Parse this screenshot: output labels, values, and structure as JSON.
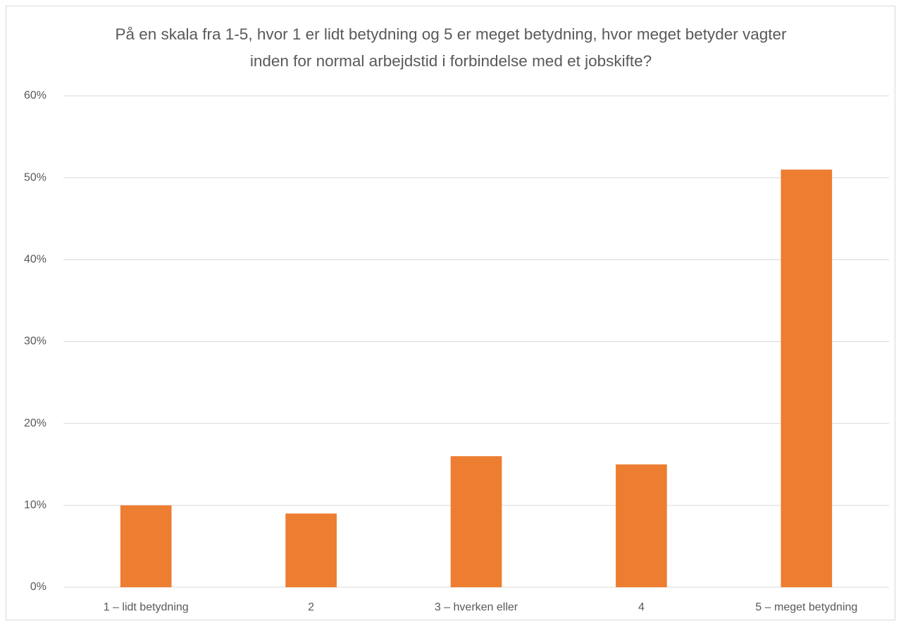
{
  "chart_data": {
    "type": "bar",
    "title": "På en skala fra 1-5, hvor 1 er lidt betydning og 5 er meget betydning, hvor meget betyder vagter inden for normal arbejdstid i forbindelse med et jobskifte?",
    "categories": [
      "1 – lidt betydning",
      "2",
      "3 – hverken eller",
      "4",
      "5 – meget betydning"
    ],
    "values": [
      10,
      9,
      16,
      15,
      51
    ],
    "color": "#ed7d31",
    "ylim": [
      0,
      60
    ],
    "yticks": [
      {
        "value": 0,
        "label": "0%"
      },
      {
        "value": 10,
        "label": "10%"
      },
      {
        "value": 20,
        "label": "20%"
      },
      {
        "value": 30,
        "label": "30%"
      },
      {
        "value": 40,
        "label": "40%"
      },
      {
        "value": 50,
        "label": "50%"
      },
      {
        "value": 60,
        "label": "60%"
      }
    ],
    "grid": true
  }
}
